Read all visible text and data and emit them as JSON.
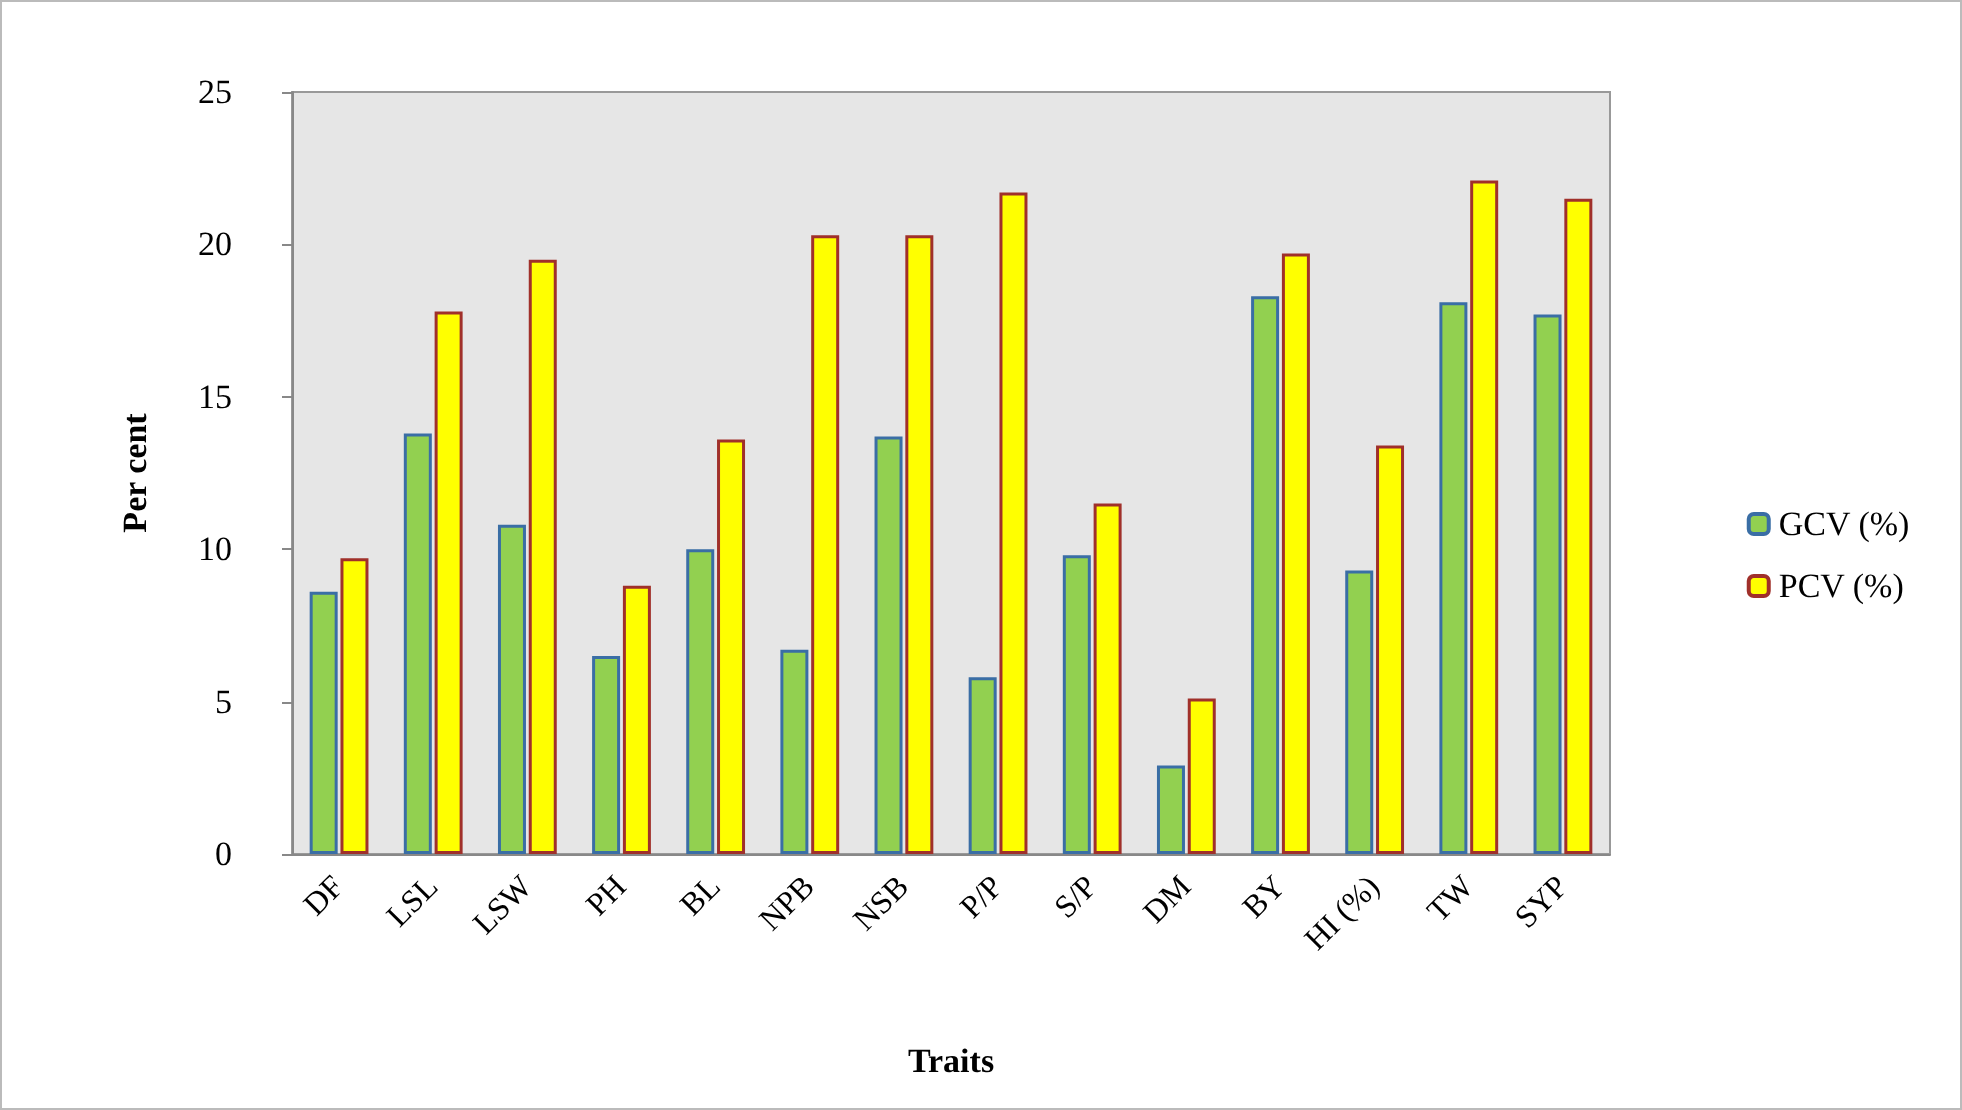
{
  "chart_data": {
    "type": "bar",
    "xlabel": "Traits",
    "ylabel": "Per cent",
    "categories": [
      "DF",
      "LSL",
      "LSW",
      "PH",
      "BL",
      "NPB",
      "NSB",
      "P/P",
      "S/P",
      "DM",
      "BY",
      "HI (%)",
      "TW",
      "SYP"
    ],
    "series": [
      {
        "name": "GCV (%)",
        "color": "#92d050",
        "values": [
          8.6,
          13.8,
          10.8,
          6.5,
          10.0,
          6.7,
          13.7,
          5.8,
          9.8,
          2.9,
          18.3,
          9.3,
          18.1,
          17.7
        ]
      },
      {
        "name": "PCV (%)",
        "color": "#ffff00",
        "values": [
          9.7,
          17.8,
          19.5,
          8.8,
          13.6,
          20.3,
          20.3,
          21.7,
          11.5,
          5.1,
          19.7,
          13.4,
          22.1,
          21.5
        ]
      }
    ],
    "ylim": [
      0,
      25
    ],
    "yticks": [
      0,
      5,
      10,
      15,
      20,
      25
    ],
    "grid": false,
    "legend": "right"
  }
}
